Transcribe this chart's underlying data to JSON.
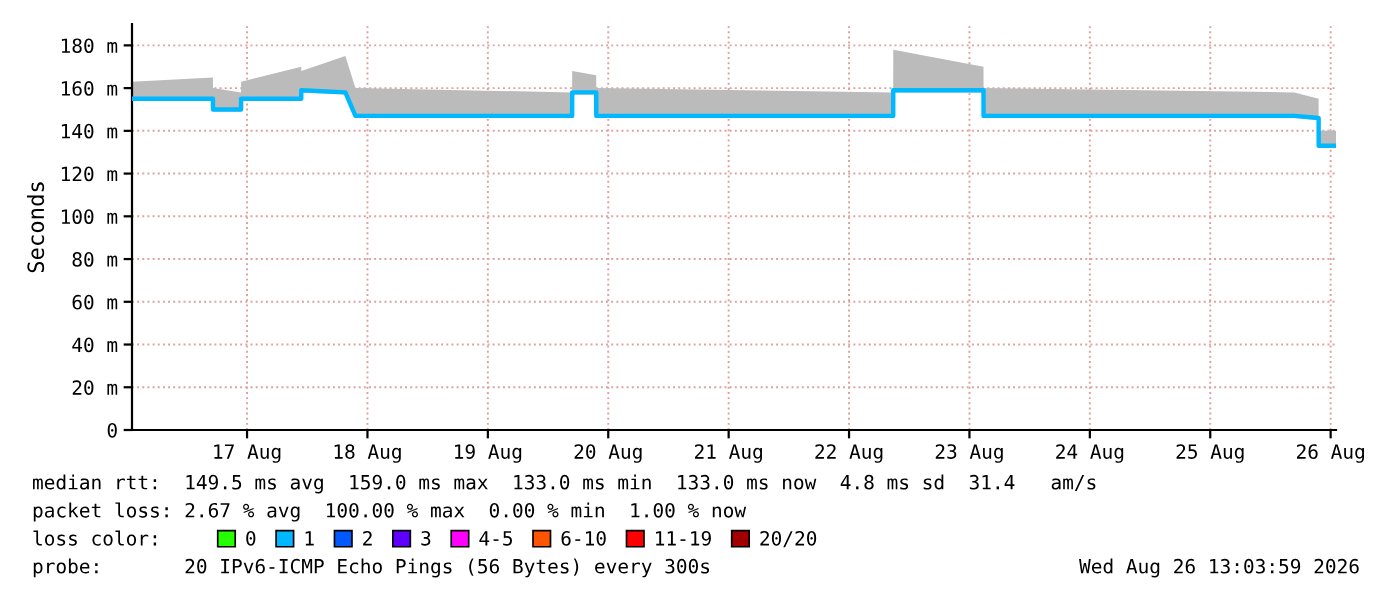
{
  "chart_data": {
    "type": "line",
    "ylabel": "Seconds",
    "xlim": [
      "2026-08-16T13:04",
      "2026-08-26T13:04"
    ],
    "ylim": [
      0,
      190
    ],
    "yticks": [
      {
        "value": 0,
        "label": "0"
      },
      {
        "value": 20,
        "label": "20 m"
      },
      {
        "value": 40,
        "label": "40 m"
      },
      {
        "value": 60,
        "label": "60 m"
      },
      {
        "value": 80,
        "label": "80 m"
      },
      {
        "value": 100,
        "label": "100 m"
      },
      {
        "value": 120,
        "label": "120 m"
      },
      {
        "value": 140,
        "label": "140 m"
      },
      {
        "value": 160,
        "label": "160 m"
      },
      {
        "value": 180,
        "label": "180 m"
      }
    ],
    "xticks": [
      {
        "value": "2026-08-17T12:00",
        "label": "17 Aug"
      },
      {
        "value": "2026-08-18T12:00",
        "label": "18 Aug"
      },
      {
        "value": "2026-08-19T12:00",
        "label": "19 Aug"
      },
      {
        "value": "2026-08-20T12:00",
        "label": "20 Aug"
      },
      {
        "value": "2026-08-21T12:00",
        "label": "21 Aug"
      },
      {
        "value": "2026-08-22T12:00",
        "label": "22 Aug"
      },
      {
        "value": "2026-08-23T12:00",
        "label": "23 Aug"
      },
      {
        "value": "2026-08-24T12:00",
        "label": "24 Aug"
      },
      {
        "value": "2026-08-25T12:00",
        "label": "25 Aug"
      },
      {
        "value": "2026-08-26T12:00",
        "label": "26 Aug"
      }
    ],
    "grid": true,
    "legend": "bottom",
    "legend_title": "loss color:",
    "series": [
      {
        "name": "0",
        "color": "#26ff00"
      },
      {
        "name": "1",
        "color": "#00b8ff",
        "x": [
          "2026-08-16T13:04",
          "2026-08-17T05:12",
          "2026-08-17T05:13",
          "2026-08-17T10:48",
          "2026-08-17T10:49",
          "2026-08-17T22:48",
          "2026-08-17T22:49",
          "2026-08-18T07:36",
          "2026-08-18T09:36",
          "2026-08-20T04:48",
          "2026-08-20T04:49",
          "2026-08-20T09:36",
          "2026-08-20T09:37",
          "2026-08-22T20:48",
          "2026-08-22T20:49",
          "2026-08-23T14:48",
          "2026-08-23T14:49",
          "2026-08-26T04:48",
          "2026-08-26T09:36",
          "2026-08-26T09:37",
          "2026-08-26T13:04"
        ],
        "values": [
          155,
          155,
          150,
          150,
          155,
          155,
          159,
          158,
          147,
          147,
          158,
          158,
          147,
          147,
          159,
          159,
          147,
          147,
          146,
          133,
          133
        ],
        "lower": [
          154,
          154,
          149,
          149,
          154,
          154,
          158,
          157,
          146,
          146,
          157,
          157,
          146,
          146,
          158,
          158,
          146,
          146,
          145,
          132,
          132
        ],
        "upper": [
          163,
          165,
          160,
          158,
          163,
          170,
          168,
          175,
          160,
          158,
          168,
          166,
          160,
          158,
          178,
          170,
          160,
          158,
          155,
          140,
          140
        ]
      },
      {
        "name": "2",
        "color": "#0059ff"
      },
      {
        "name": "3",
        "color": "#5e00ff"
      },
      {
        "name": "4-5",
        "color": "#ff00ff"
      },
      {
        "name": "6-10",
        "color": "#ff5500"
      },
      {
        "name": "11-19",
        "color": "#ff0000"
      },
      {
        "name": "20/20",
        "color": "#a10000"
      }
    ],
    "annotations": [
      "median rtt:  149.5 ms avg  159.0 ms max  133.0 ms min  133.0 ms now  4.8 ms sd  31.4   am/s",
      "packet loss: 2.67 % avg  100.00 % max  0.00 % min  1.00 % now",
      "probe:       20 IPv6-ICMP Echo Pings (56 Bytes) every 300s",
      "Wed Aug 26 13:03:59 2026"
    ]
  }
}
